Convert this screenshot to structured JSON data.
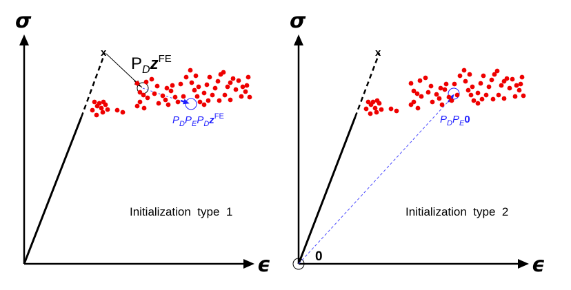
{
  "panels": [
    {
      "id": "left",
      "title": "Initialization  type  1",
      "y_axis_label": "σ",
      "x_axis_label": "ϵ",
      "start_marker": "x",
      "label_projection": {
        "P": "P",
        "D": "D",
        "z": "z",
        "FE": "FE"
      },
      "label_blue": {
        "P1": "P",
        "D": "D",
        "P2": "P",
        "E": "E",
        "P3": "P",
        "D2": "D",
        "z": "z",
        "FE": "FE"
      }
    },
    {
      "id": "right",
      "title": "Initialization  type  2",
      "y_axis_label": "σ",
      "x_axis_label": "ϵ",
      "start_marker": "x",
      "origin_label": "0",
      "label_blue": {
        "P1": "P",
        "D": "D",
        "P2": "P",
        "E": "E",
        "zero": "0"
      }
    }
  ],
  "colors": {
    "points": "#ee0000",
    "axis": "#000000",
    "blue": "#1f1fff",
    "dashed_blue": "#4a4aff"
  },
  "icons": {
    "axis_arrow": "arrowhead-icon",
    "circle_marker": "circle-marker-icon"
  }
}
